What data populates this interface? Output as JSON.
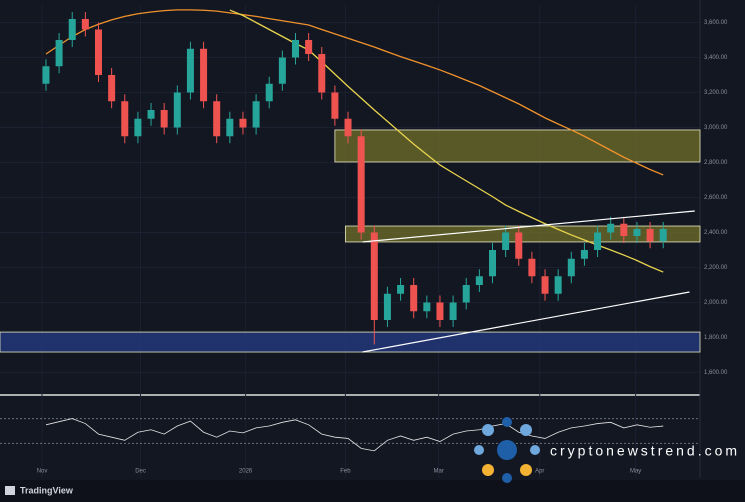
{
  "chart_data": {
    "type": "candlestick",
    "brand": "TradingView",
    "watermark": "cryptonewstrend.com",
    "xlim": [
      -3.5,
      49.8
    ],
    "xticks": [
      {
        "value": -0.3,
        "label": "Nov"
      },
      {
        "value": 7.2,
        "label": "Dec"
      },
      {
        "value": 15.2,
        "label": "2026"
      },
      {
        "value": 22.8,
        "label": "Feb"
      },
      {
        "value": 29.9,
        "label": "Mar"
      },
      {
        "value": 37.6,
        "label": "Apr"
      },
      {
        "value": 44.9,
        "label": "May"
      }
    ],
    "ylim": [
      1500,
      3700
    ],
    "yticks": [
      {
        "value": 1600,
        "label": "1,600.00"
      },
      {
        "value": 1800,
        "label": "1,800.00"
      },
      {
        "value": 2000,
        "label": "2,000.00"
      },
      {
        "value": 2200,
        "label": "2,200.00"
      },
      {
        "value": 2400,
        "label": "2,400.00"
      },
      {
        "value": 2600,
        "label": "2,600.00"
      },
      {
        "value": 2800,
        "label": "2,800.00"
      },
      {
        "value": 3000,
        "label": "3,000.00"
      },
      {
        "value": 3200,
        "label": "3,200.00"
      },
      {
        "value": 3400,
        "label": "3,400.00"
      },
      {
        "value": 3600,
        "label": "3,600.00"
      }
    ],
    "up_color": "#26a69a",
    "down_color": "#ef5350",
    "open": [
      3250,
      3350,
      3500,
      3620,
      3560,
      3300,
      3150,
      2950,
      3050,
      3100,
      3000,
      3200,
      3450,
      3150,
      2950,
      3050,
      3000,
      3150,
      3250,
      3400,
      3500,
      3420,
      3200,
      3050,
      2950,
      2400,
      1900,
      2050,
      2100,
      1950,
      2000,
      1900,
      2000,
      2100,
      2150,
      2300,
      2400,
      2250,
      2150,
      2050,
      2150,
      2250,
      2300,
      2400,
      2450,
      2380,
      2420,
      2350
    ],
    "high": [
      3390,
      3540,
      3660,
      3660,
      3600,
      3340,
      3190,
      3090,
      3140,
      3140,
      3240,
      3490,
      3490,
      3190,
      3090,
      3090,
      3190,
      3290,
      3440,
      3540,
      3540,
      3460,
      3240,
      3090,
      2990,
      2440,
      2090,
      2140,
      2140,
      2040,
      2040,
      2040,
      2140,
      2190,
      2340,
      2440,
      2440,
      2290,
      2190,
      2190,
      2290,
      2340,
      2440,
      2490,
      2490,
      2460,
      2460,
      2460
    ],
    "low": [
      3210,
      3310,
      3460,
      3520,
      3260,
      3110,
      2910,
      2910,
      3010,
      2960,
      2960,
      3160,
      3110,
      2910,
      2910,
      2960,
      2960,
      3110,
      3210,
      3360,
      3380,
      3160,
      3010,
      2910,
      2360,
      1760,
      1860,
      2010,
      1910,
      1910,
      1860,
      1860,
      1960,
      2060,
      2110,
      2260,
      2210,
      2110,
      2010,
      2010,
      2110,
      2210,
      2260,
      2360,
      2340,
      2340,
      2310,
      2310
    ],
    "close": [
      3350,
      3500,
      3620,
      3560,
      3300,
      3150,
      2950,
      3050,
      3100,
      3000,
      3200,
      3450,
      3150,
      2950,
      3050,
      3000,
      3150,
      3250,
      3400,
      3500,
      3420,
      3200,
      3050,
      2950,
      2400,
      1900,
      2050,
      2100,
      1950,
      2000,
      1900,
      2000,
      2100,
      2150,
      2300,
      2400,
      2250,
      2150,
      2050,
      2150,
      2250,
      2300,
      2400,
      2450,
      2380,
      2420,
      2350,
      2420
    ],
    "overlays": [
      {
        "color": "#f0922b",
        "values": [
          3420,
          3470,
          3520,
          3560,
          3590,
          3615,
          3635,
          3650,
          3660,
          3668,
          3672,
          3672,
          3670,
          3665,
          3655,
          3645,
          3635,
          3622,
          3610,
          3598,
          3586,
          3560,
          3535,
          3510,
          3485,
          3460,
          3432,
          3405,
          3380,
          3355,
          3329,
          3300,
          3270,
          3240,
          3205,
          3170,
          3135,
          3095,
          3055,
          3020,
          2986,
          2950,
          2910,
          2870,
          2830,
          2795,
          2760,
          2729
        ]
      },
      {
        "color": "#e8d44d",
        "values": [
          null,
          null,
          null,
          null,
          null,
          null,
          null,
          null,
          null,
          null,
          null,
          null,
          null,
          null,
          3671,
          3640,
          3600,
          3560,
          3520,
          3480,
          3443,
          3375,
          3305,
          3235,
          3168,
          3100,
          3035,
          2970,
          2905,
          2845,
          2786,
          2740,
          2695,
          2650,
          2605,
          2557,
          2520,
          2485,
          2450,
          2418,
          2386,
          2357,
          2328,
          2300,
          2271,
          2240,
          2205,
          2174
        ]
      }
    ],
    "zones": [
      {
        "from": 2803,
        "to": 2986,
        "start": 22,
        "color": "#6b6a2a"
      },
      {
        "from": 2346,
        "to": 2437,
        "start": 22.8,
        "color": "#6b6a2a"
      },
      {
        "from": 1717,
        "to": 1831,
        "start": -3.5,
        "color": "#243a80"
      }
    ],
    "trendlines": [
      {
        "x": [
          24.1,
          49.4
        ],
        "y": [
          2346,
          2523
        ]
      },
      {
        "x": [
          24.1,
          49
        ],
        "y": [
          1717,
          2060
        ]
      }
    ],
    "oscillator": {
      "ylim": [
        0,
        100
      ],
      "levels": [
        70,
        30
      ],
      "values": [
        60,
        65,
        70,
        62,
        45,
        40,
        35,
        48,
        52,
        45,
        58,
        66,
        48,
        40,
        50,
        47,
        55,
        58,
        64,
        68,
        60,
        45,
        40,
        38,
        22,
        18,
        35,
        42,
        35,
        40,
        33,
        45,
        50,
        52,
        58,
        62,
        48,
        42,
        38,
        48,
        55,
        58,
        62,
        64,
        55,
        60,
        56,
        58
      ]
    }
  }
}
